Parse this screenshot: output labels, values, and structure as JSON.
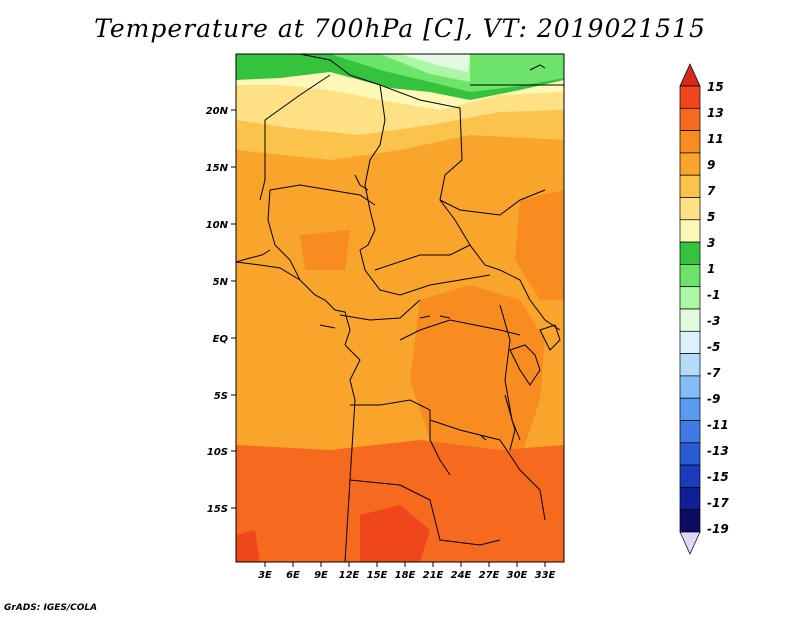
{
  "title": "Temperature at 700hPa [C], VT: 2019021515",
  "credit": "GrADS: IGES/COLA",
  "map": {
    "lat_ticks": [
      "20N",
      "15N",
      "10N",
      "5N",
      "EQ",
      "5S",
      "10S",
      "15S"
    ],
    "lon_ticks": [
      "3E",
      "6E",
      "9E",
      "12E",
      "15E",
      "18E",
      "21E",
      "24E",
      "27E",
      "30E",
      "33E"
    ]
  },
  "colorbar": {
    "labels": [
      "15",
      "13",
      "11",
      "9",
      "7",
      "5",
      "3",
      "1",
      "-1",
      "-3",
      "-5",
      "-7",
      "-9",
      "-11",
      "-13",
      "-15",
      "-17",
      "-19"
    ],
    "colors": [
      "#d9281c",
      "#f0461c",
      "#f56a1e",
      "#f88c20",
      "#f9a42a",
      "#fbc34c",
      "#fde184",
      "#fdf8b8",
      "#35c23c",
      "#6ce46a",
      "#adf6a6",
      "#e2fbe0",
      "#ddf0fb",
      "#b3dcfa",
      "#83bdf6",
      "#5a9bf0",
      "#3f7ae6",
      "#2a5bd6",
      "#1a3bbc",
      "#0f1f96",
      "#0c0c60",
      "#ded8f4"
    ]
  }
}
